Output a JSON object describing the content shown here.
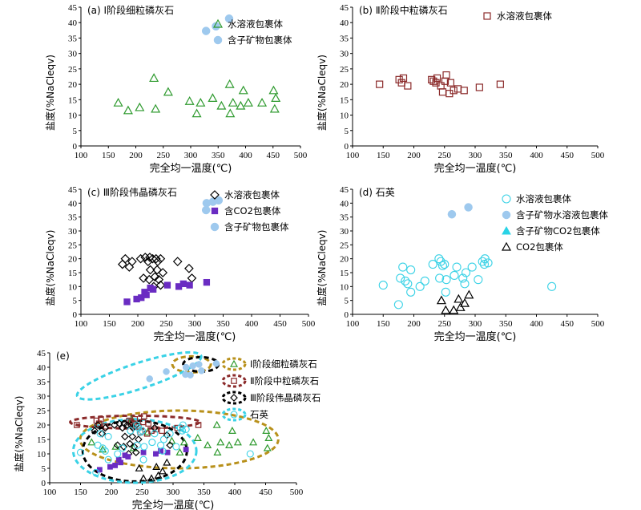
{
  "figure": "salinity vs homogenization temperature",
  "chart_data": [
    {
      "id": "a",
      "type": "scatter",
      "title": "(a) Ⅰ阶段细粒磷灰石",
      "xlabel": "完全均一温度(℃)",
      "ylabel": "盐度(%NaCleqv)",
      "xlim": [
        100,
        500
      ],
      "ylim": [
        0,
        45
      ],
      "xticks": [
        100,
        150,
        200,
        250,
        300,
        350,
        400,
        450,
        500
      ],
      "yticks": [
        0,
        5,
        10,
        15,
        20,
        25,
        30,
        35,
        40,
        45
      ],
      "legend_position": "top-right",
      "series": [
        {
          "name": "水溶液包裹体",
          "marker": "triangle",
          "color": "#2e9a2e",
          "points": [
            [
              168,
              14
            ],
            [
              186,
              11.5
            ],
            [
              207,
              12.5
            ],
            [
              233,
              22
            ],
            [
              236,
              12
            ],
            [
              259,
              17.5
            ],
            [
              298,
              14.5
            ],
            [
              311,
              10.5
            ],
            [
              318,
              14
            ],
            [
              340,
              15.5
            ],
            [
              356,
              13
            ],
            [
              372,
              10.5
            ],
            [
              371,
              20
            ],
            [
              377,
              14
            ],
            [
              391,
              13
            ],
            [
              396,
              18
            ],
            [
              405,
              14
            ],
            [
              430,
              14
            ],
            [
              451,
              18
            ],
            [
              453,
              12
            ],
            [
              455,
              15.5
            ]
          ]
        },
        {
          "name": "含子矿物包裹体",
          "marker": "circle",
          "color": "#9ec9ee",
          "points": [
            [
              328,
              37.3
            ],
            [
              346,
              38.8
            ],
            [
              370,
              41.3
            ]
          ]
        }
      ]
    },
    {
      "id": "b",
      "type": "scatter",
      "title": "(b) Ⅱ阶段中粒磷灰石",
      "xlabel": "完全均一温度(℃)",
      "ylabel": "盐度(%NaCleqv)",
      "xlim": [
        100,
        500
      ],
      "ylim": [
        0,
        45
      ],
      "xticks": [
        100,
        150,
        200,
        250,
        300,
        350,
        400,
        450,
        500
      ],
      "yticks": [
        0,
        5,
        10,
        15,
        20,
        25,
        30,
        35,
        40,
        45
      ],
      "legend_position": "top-right",
      "series": [
        {
          "name": "水溶液包裹体",
          "marker": "square",
          "color": "#8b2a2a",
          "points": [
            [
              144,
              20
            ],
            [
              176,
              21.5
            ],
            [
              180,
              20.5
            ],
            [
              183,
              22
            ],
            [
              190,
              19.5
            ],
            [
              229,
              21.5
            ],
            [
              232,
              21
            ],
            [
              236,
              20.5
            ],
            [
              238,
              22
            ],
            [
              244,
              19.5
            ],
            [
              247,
              17.5
            ],
            [
              251,
              21
            ],
            [
              253,
              23
            ],
            [
              258,
              17
            ],
            [
              260,
              20.5
            ],
            [
              265,
              18
            ],
            [
              272,
              18.5
            ],
            [
              282,
              18
            ],
            [
              307,
              19
            ],
            [
              341,
              20
            ]
          ]
        }
      ]
    },
    {
      "id": "c",
      "type": "scatter",
      "title": "(c) Ⅲ阶段伟晶磷灰石",
      "xlabel": "完全均一温度(℃)",
      "ylabel": "盐度(%NaCleqv)",
      "xlim": [
        100,
        500
      ],
      "ylim": [
        0,
        45
      ],
      "xticks": [
        100,
        150,
        200,
        250,
        300,
        350,
        400,
        450,
        500
      ],
      "yticks": [
        0,
        5,
        10,
        15,
        20,
        25,
        30,
        35,
        40,
        45
      ],
      "legend_position": "top-right",
      "series": [
        {
          "name": "水溶液包裹体",
          "marker": "diamond",
          "color": "#000000",
          "points": [
            [
              173,
              18
            ],
            [
              178,
              20
            ],
            [
              185,
              17
            ],
            [
              190,
              19
            ],
            [
              205,
              20
            ],
            [
              210,
              13
            ],
            [
              213,
              20.5
            ],
            [
              218,
              19
            ],
            [
              220,
              12.5
            ],
            [
              221,
              20.5
            ],
            [
              222,
              16
            ],
            [
              226,
              20
            ],
            [
              228,
              10
            ],
            [
              230,
              13.5
            ],
            [
              232,
              20
            ],
            [
              234,
              16
            ],
            [
              235,
              19
            ],
            [
              237,
              12.5
            ],
            [
              240,
              10.5
            ],
            [
              240,
              20
            ],
            [
              244,
              15
            ],
            [
              270,
              19
            ],
            [
              290,
              16.5
            ],
            [
              295,
              13
            ]
          ]
        },
        {
          "name": "含CO2包裹体",
          "marker": "square-filled",
          "color": "#6a2cc2",
          "points": [
            [
              181,
              4.5
            ],
            [
              198,
              5.5
            ],
            [
              206,
              6
            ],
            [
              212,
              8
            ],
            [
              215,
              7
            ],
            [
              222,
              9.5
            ],
            [
              227,
              9
            ],
            [
              252,
              10.5
            ],
            [
              272,
              10
            ],
            [
              280,
              11
            ],
            [
              291,
              10.5
            ],
            [
              321,
              11.5
            ]
          ]
        },
        {
          "name": "含子矿物包裹体",
          "marker": "circle",
          "color": "#9ec9ee",
          "points": [
            [
              320,
              37.5
            ],
            [
              321,
              40
            ],
            [
              332,
              40.5
            ],
            [
              342,
              41
            ]
          ]
        }
      ]
    },
    {
      "id": "d",
      "type": "scatter",
      "title": "(d) 石英",
      "xlabel": "完全均一温度(℃)",
      "ylabel": "盐度(%NaCleqv)",
      "xlim": [
        100,
        500
      ],
      "ylim": [
        0,
        45
      ],
      "xticks": [
        100,
        150,
        200,
        250,
        300,
        350,
        400,
        450,
        500
      ],
      "yticks": [
        0,
        5,
        10,
        15,
        20,
        25,
        30,
        35,
        40,
        45
      ],
      "legend_position": "top-right",
      "series": [
        {
          "name": "水溶液包裹体",
          "marker": "circle-open",
          "color": "#3ad2e6",
          "points": [
            [
              150,
              10.5
            ],
            [
              175,
              3.5
            ],
            [
              178,
              13
            ],
            [
              182,
              17
            ],
            [
              186,
              12
            ],
            [
              190,
              11
            ],
            [
              195,
              8
            ],
            [
              195,
              16
            ],
            [
              210,
              10
            ],
            [
              218,
              12
            ],
            [
              231,
              18
            ],
            [
              241,
              20
            ],
            [
              242,
              13
            ],
            [
              244,
              19
            ],
            [
              247,
              17.5
            ],
            [
              250,
              18
            ],
            [
              252,
              8
            ],
            [
              253,
              12.5
            ],
            [
              266,
              14
            ],
            [
              270,
              17
            ],
            [
              280,
              13
            ],
            [
              283,
              11
            ],
            [
              285,
              15
            ],
            [
              295,
              17
            ],
            [
              305,
              12.5
            ],
            [
              312,
              19
            ],
            [
              315,
              18
            ],
            [
              316,
              20
            ],
            [
              321,
              18.5
            ],
            [
              425,
              10
            ]
          ]
        },
        {
          "name": "含子矿物水溶液包裹体",
          "marker": "circle",
          "color": "#9ec9ee",
          "points": [
            [
              262,
              36
            ],
            [
              289,
              38.5
            ]
          ]
        },
        {
          "name": "含子矿物CO2包裹体",
          "marker": "triangle-filled",
          "color": "#29d3e6",
          "points": []
        },
        {
          "name": "CO2包裹体",
          "marker": "triangle-open",
          "color": "#000000",
          "points": [
            [
              245,
              5
            ],
            [
              252,
              1.5
            ],
            [
              265,
              1.5
            ],
            [
              273,
              5.5
            ],
            [
              276,
              2.5
            ],
            [
              283,
              4
            ],
            [
              290,
              7
            ]
          ]
        }
      ]
    },
    {
      "id": "e",
      "type": "scatter",
      "title": "(e)",
      "xlabel": "完全均一温度(℃)",
      "ylabel": "盐度(%NaCleqv)",
      "xlim": [
        100,
        500
      ],
      "ylim": [
        0,
        45
      ],
      "xticks": [
        100,
        150,
        200,
        250,
        300,
        350,
        400,
        450,
        500
      ],
      "yticks": [
        0,
        5,
        10,
        15,
        20,
        25,
        30,
        35,
        40,
        45
      ],
      "legend_position": "top-right",
      "legend": [
        {
          "name": "Ⅰ阶段细粒磷灰石",
          "marker": "triangle",
          "color": "#2e9a2e",
          "ring": "#b8901a"
        },
        {
          "name": "Ⅱ阶段中粒磷灰石",
          "marker": "square",
          "color": "#8b2a2a",
          "ring": "#8b2a2a"
        },
        {
          "name": "Ⅲ阶段伟晶磷灰石",
          "marker": "diamond",
          "color": "#000000",
          "ring": "#000000"
        },
        {
          "name": "石英",
          "marker": "circle-open",
          "color": "#3ad2e6",
          "ring": "#3ad2e6"
        }
      ],
      "note": "combined plot of panels a-d, with dashed ellipses outlining each stage"
    }
  ]
}
